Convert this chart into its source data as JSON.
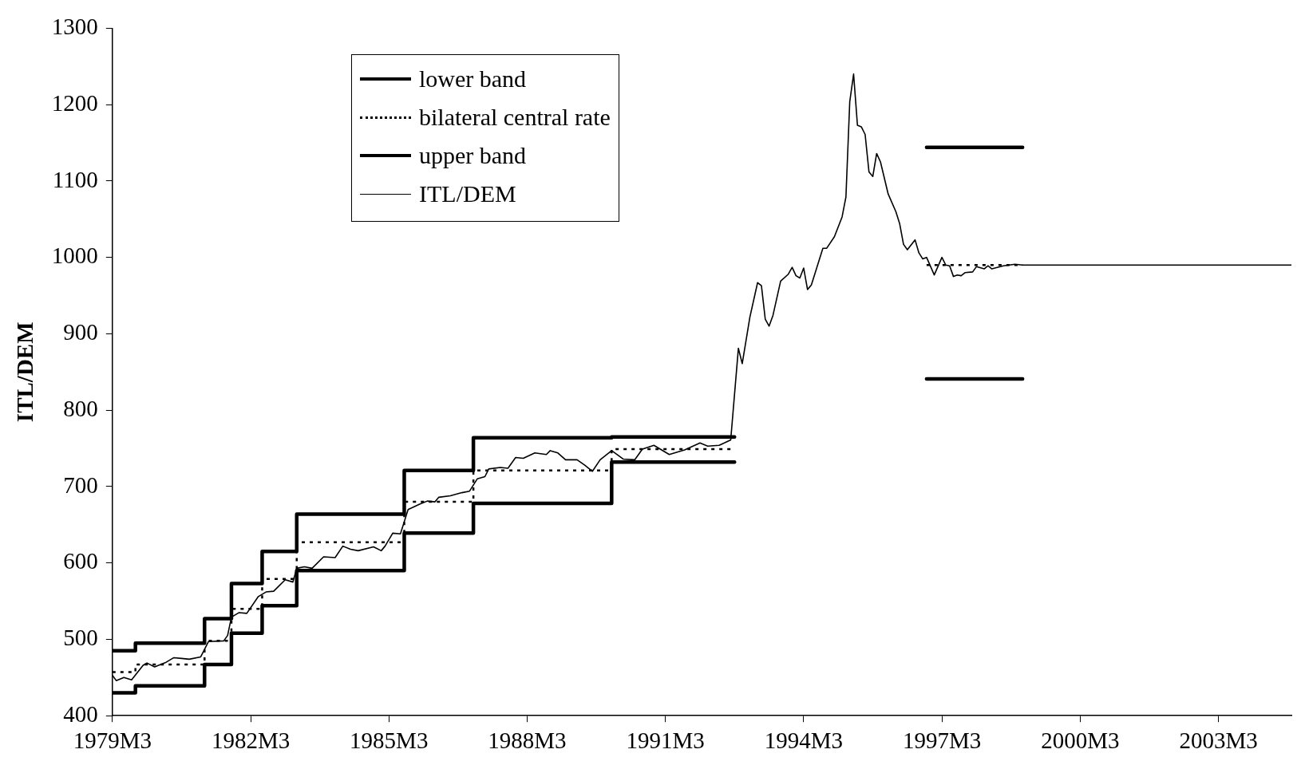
{
  "chart_data": {
    "type": "line",
    "ylabel": "ITL/DEM",
    "xlim": [
      "1979-03",
      "2004-10"
    ],
    "ylim": [
      400,
      1300
    ],
    "xticks": [
      {
        "value": "1979-03",
        "label": "1979M3"
      },
      {
        "value": "1982-03",
        "label": "1982M3"
      },
      {
        "value": "1985-03",
        "label": "1985M3"
      },
      {
        "value": "1988-03",
        "label": "1988M3"
      },
      {
        "value": "1991-03",
        "label": "1991M3"
      },
      {
        "value": "1994-03",
        "label": "1994M3"
      },
      {
        "value": "1997-03",
        "label": "1997M3"
      },
      {
        "value": "2000-03",
        "label": "2000M3"
      },
      {
        "value": "2003-03",
        "label": "2003M3"
      }
    ],
    "yticks": [
      400,
      500,
      600,
      700,
      800,
      900,
      1000,
      1100,
      1200,
      1300
    ],
    "grid": false,
    "legend": "top left",
    "marker": "none",
    "series": [
      {
        "name": "lower band",
        "type": "step",
        "color": "#000000",
        "line_style": "solid",
        "x": [
          "1979-03",
          "1979-09",
          "1981-03",
          "1981-10",
          "1982-06",
          "1983-03",
          "1985-07",
          "1987-01",
          "1990-01",
          "1992-09",
          "1994-01",
          "1996-11",
          "1998-12"
        ],
        "values": [
          430,
          439,
          467,
          508,
          544,
          590,
          639,
          678,
          732,
          732,
          null,
          841,
          841
        ]
      },
      {
        "name": "bilateral central rate",
        "type": "step",
        "color": "#000000",
        "line_style": "dotted",
        "x": [
          "1979-03",
          "1979-09",
          "1981-03",
          "1981-10",
          "1982-06",
          "1983-03",
          "1985-07",
          "1987-01",
          "1990-01",
          "1992-09",
          "1994-01",
          "1996-11",
          "1998-12"
        ],
        "values": [
          457,
          467,
          498,
          540,
          579,
          627,
          680,
          721,
          749,
          749,
          null,
          990,
          990
        ]
      },
      {
        "name": "upper band",
        "type": "step",
        "color": "#000000",
        "line_style": "solid",
        "x": [
          "1979-03",
          "1979-09",
          "1981-03",
          "1981-10",
          "1982-06",
          "1983-03",
          "1985-07",
          "1987-01",
          "1990-01",
          "1992-09",
          "1994-01",
          "1996-11",
          "1998-12"
        ],
        "values": [
          485,
          495,
          527,
          573,
          615,
          664,
          721,
          764,
          765,
          765,
          null,
          1144,
          1144
        ]
      },
      {
        "name": "ITL/DEM",
        "type": "line",
        "color": "#000000",
        "line_style": "solid",
        "x": [
          "1979-03",
          "1979-04",
          "1979-06",
          "1979-08",
          "1979-11",
          "1979-12",
          "1980-02",
          "1980-05",
          "1980-07",
          "1980-09",
          "1980-11",
          "1981-02",
          "1981-04",
          "1981-08",
          "1981-09",
          "1981-10",
          "1981-12",
          "1982-02",
          "1982-05",
          "1982-07",
          "1982-09",
          "1982-12",
          "1983-02",
          "1983-03",
          "1983-05",
          "1983-07",
          "1983-10",
          "1984-01",
          "1984-03",
          "1984-05",
          "1984-07",
          "1984-11",
          "1985-01",
          "1985-02",
          "1985-04",
          "1985-06",
          "1985-08",
          "1985-11",
          "1986-01",
          "1986-03",
          "1986-04",
          "1986-07",
          "1986-10",
          "1986-12",
          "1987-02",
          "1987-04",
          "1987-05",
          "1987-08",
          "1987-10",
          "1987-12",
          "1988-02",
          "1988-05",
          "1988-08",
          "1988-09",
          "1988-11",
          "1989-01",
          "1989-04",
          "1989-06",
          "1989-08",
          "1989-10",
          "1990-01",
          "1990-04",
          "1990-07",
          "1990-09",
          "1990-12",
          "1991-04",
          "1991-08",
          "1991-12",
          "1992-02",
          "1992-05",
          "1992-08",
          "1992-10",
          "1992-11",
          "1993-01",
          "1993-03",
          "1993-04",
          "1993-05",
          "1993-06",
          "1993-07",
          "1993-09",
          "1993-11",
          "1993-12",
          "1994-01",
          "1994-02",
          "1994-03",
          "1994-04",
          "1994-05",
          "1994-08",
          "1994-09",
          "1994-11",
          "1995-01",
          "1995-02",
          "1995-03",
          "1995-04",
          "1995-05",
          "1995-06",
          "1995-07",
          "1995-08",
          "1995-09",
          "1995-10",
          "1995-11",
          "1996-01",
          "1996-03",
          "1996-04",
          "1996-05",
          "1996-06",
          "1996-08",
          "1996-09",
          "1996-10",
          "1996-11",
          "1997-01",
          "1997-03",
          "1997-04",
          "1997-05",
          "1997-06",
          "1997-07",
          "1997-08",
          "1997-09",
          "1997-11",
          "1997-12",
          "1998-02",
          "1998-03",
          "1998-04",
          "1998-07",
          "1998-10",
          "1998-12",
          "2004-10"
        ],
        "values": [
          453,
          446,
          450,
          447,
          466,
          469,
          464,
          470,
          476,
          475,
          474,
          477,
          497,
          498,
          505,
          529,
          535,
          534,
          556,
          562,
          563,
          578,
          575,
          593,
          595,
          593,
          608,
          607,
          622,
          618,
          616,
          621,
          616,
          622,
          639,
          638,
          670,
          677,
          681,
          680,
          686,
          688,
          692,
          694,
          710,
          713,
          723,
          725,
          724,
          738,
          737,
          744,
          742,
          747,
          744,
          735,
          735,
          728,
          720,
          735,
          747,
          736,
          735,
          749,
          754,
          742,
          748,
          757,
          753,
          754,
          761,
          881,
          861,
          922,
          967,
          963,
          919,
          910,
          924,
          969,
          978,
          987,
          976,
          973,
          986,
          958,
          964,
          1012,
          1012,
          1027,
          1053,
          1079,
          1204,
          1240,
          1173,
          1171,
          1161,
          1112,
          1106,
          1136,
          1125,
          1083,
          1060,
          1044,
          1017,
          1010,
          1023,
          1006,
          998,
          1000,
          977,
          1000,
          990,
          989,
          975,
          977,
          976,
          980,
          981,
          988,
          985,
          989,
          985,
          989,
          991,
          990,
          990
        ]
      }
    ]
  }
}
